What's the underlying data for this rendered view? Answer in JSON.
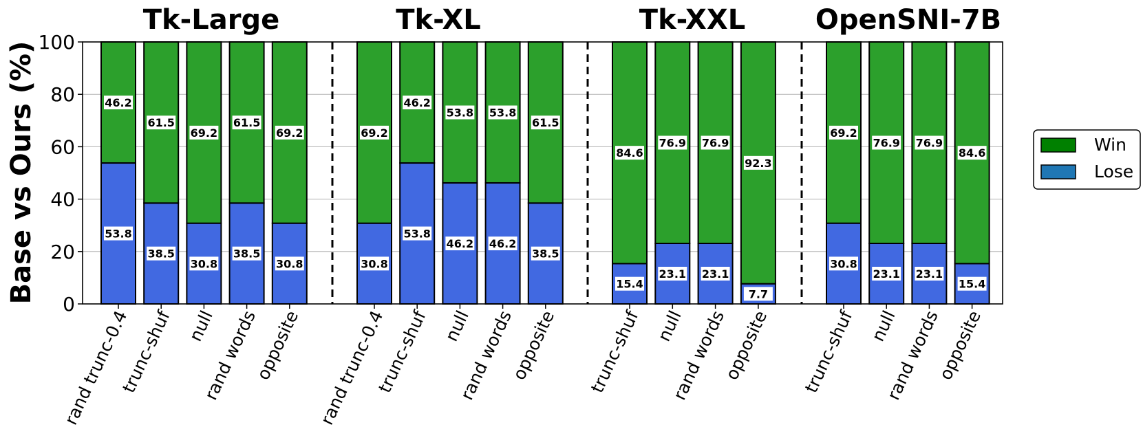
{
  "chart_data": {
    "type": "bar",
    "stacked": true,
    "ylabel": "Base vs Ours (%)",
    "ylim": [
      0,
      100
    ],
    "yticks": [
      0,
      20,
      40,
      60,
      80,
      100
    ],
    "grid": true,
    "legend": {
      "placement": "right",
      "entries": [
        {
          "name": "Win",
          "color": "#008000"
        },
        {
          "name": "Lose",
          "color": "#1f77b4"
        }
      ]
    },
    "colors": {
      "win_bar": "#2ca02c",
      "lose_bar": "#4169e1",
      "grid": "#b0b0b0"
    },
    "groups": [
      {
        "title": "Tk-Large",
        "categories": [
          "rand trunc-0.4",
          "trunc-shuf",
          "null",
          "rand words",
          "opposite"
        ],
        "lose": [
          53.8,
          38.5,
          30.8,
          38.5,
          30.8
        ],
        "win": [
          46.2,
          61.5,
          69.2,
          61.5,
          69.2
        ]
      },
      {
        "title": "Tk-XL",
        "categories": [
          "rand trunc-0.4",
          "trunc-shuf",
          "null",
          "rand words",
          "opposite"
        ],
        "lose": [
          30.8,
          53.8,
          46.2,
          46.2,
          38.5
        ],
        "win": [
          69.2,
          46.2,
          53.8,
          53.8,
          61.5
        ]
      },
      {
        "title": "Tk-XXL",
        "categories": [
          "trunc-shuf",
          "null",
          "rand words",
          "opposite"
        ],
        "lose": [
          15.4,
          23.1,
          23.1,
          7.7
        ],
        "win": [
          84.6,
          76.9,
          76.9,
          92.3
        ]
      },
      {
        "title": "OpenSNI-7B",
        "categories": [
          "trunc-shuf",
          "null",
          "rand words",
          "opposite"
        ],
        "lose": [
          30.8,
          23.1,
          23.1,
          15.4
        ],
        "win": [
          69.2,
          76.9,
          76.9,
          84.6
        ]
      }
    ]
  }
}
